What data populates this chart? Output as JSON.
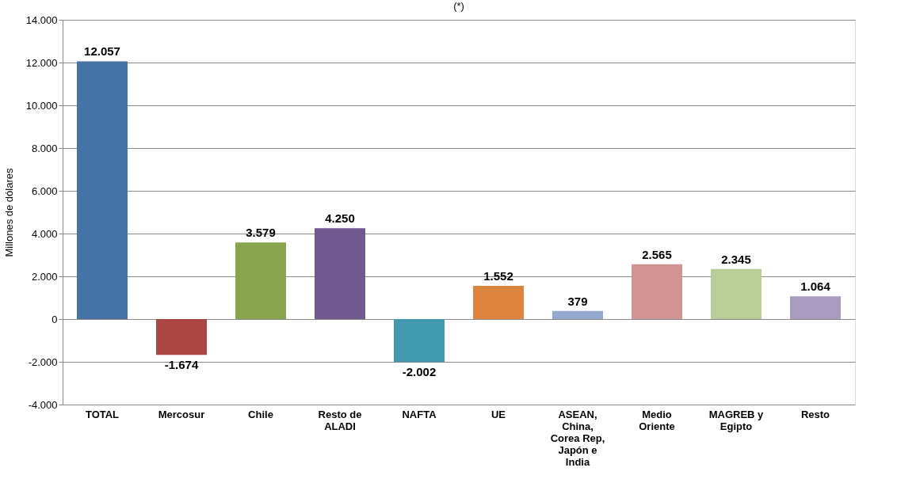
{
  "chart_data": {
    "type": "bar",
    "title": "(*)",
    "ylabel": "Millones de dólares",
    "categories": [
      "TOTAL",
      "Mercosur",
      "Chile",
      "Resto de ALADI",
      "NAFTA",
      "UE",
      "ASEAN, China, Corea Rep, Japón e India",
      "Medio Oriente",
      "MAGREB y Egipto",
      "Resto"
    ],
    "values": [
      12057,
      -1674,
      3579,
      4250,
      -2002,
      1552,
      379,
      2565,
      2345,
      1064
    ],
    "colors": [
      "#4572a7",
      "#aa4643",
      "#89a54e",
      "#71588f",
      "#4198af",
      "#db843d",
      "#93a9cf",
      "#d19392",
      "#b9cd96",
      "#a99bbd"
    ],
    "value_labels": [
      "12.057",
      "-1.674",
      "3.579",
      "4.250",
      "-2.002",
      "1.552",
      "379",
      "2.565",
      "2.345",
      "1.064"
    ],
    "ylim": [
      -4000,
      14000
    ],
    "yticks": [
      {
        "value": -4000,
        "label": "-4.000"
      },
      {
        "value": -2000,
        "label": "-2.000"
      },
      0,
      {
        "value": 2000,
        "label": "2.000"
      },
      {
        "value": 4000,
        "label": "4.000"
      },
      {
        "value": 6000,
        "label": "6.000"
      },
      {
        "value": 8000,
        "label": "8.000"
      },
      {
        "value": 10000,
        "label": "10.000"
      },
      {
        "value": 12000,
        "label": "12.000"
      },
      {
        "value": 14000,
        "label": "14.000"
      }
    ],
    "grid": "y",
    "legend": false
  }
}
